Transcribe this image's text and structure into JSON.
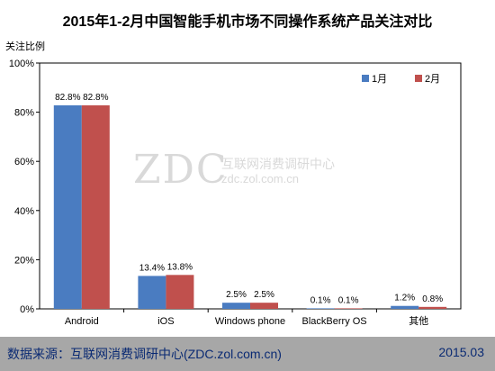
{
  "title": "2015年1-2月中国智能手机市场不同操作系统产品关注对比",
  "footer": {
    "source": "数据来源：互联网消费调研中心(ZDC.zol.com.cn)",
    "date": "2015.03"
  },
  "watermark": {
    "logo": "ZDC",
    "name": "互联网消费调研中心",
    "url": "zdc.zol.com.cn"
  },
  "colors": {
    "series1": "#4a7cc1",
    "series2": "#c0504d",
    "footer_bg": "#a7a7a7",
    "footer_text": "#0a2a73"
  },
  "chart_data": {
    "type": "bar",
    "title": "2015年1-2月中国智能手机市场不同操作系统产品关注对比",
    "xlabel": "",
    "ylabel": "关注比例",
    "ylim": [
      0,
      100
    ],
    "yticks": [
      "0%",
      "20%",
      "40%",
      "60%",
      "80%",
      "100%"
    ],
    "grid": false,
    "legend_position": "top-right",
    "categories": [
      "Android",
      "iOS",
      "Windows phone",
      "BlackBerry OS",
      "其他"
    ],
    "series": [
      {
        "name": "1月",
        "values": [
          82.8,
          13.4,
          2.5,
          0.1,
          1.2
        ],
        "labels": [
          "82.8%",
          "13.4%",
          "2.5%",
          "0.1%",
          "1.2%"
        ]
      },
      {
        "name": "2月",
        "values": [
          82.8,
          13.8,
          2.5,
          0.1,
          0.8
        ],
        "labels": [
          "82.8%",
          "13.8%",
          "2.5%",
          "0.1%",
          "0.8%"
        ]
      }
    ]
  }
}
